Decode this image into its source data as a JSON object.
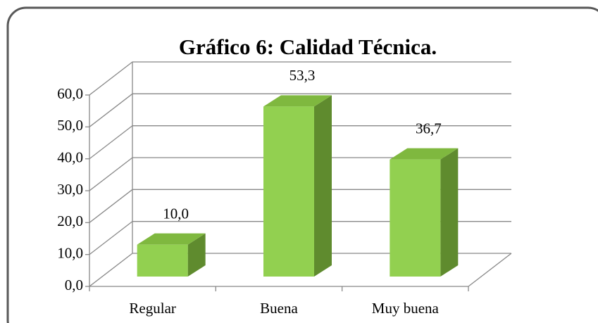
{
  "chart_data": {
    "type": "bar3d",
    "title": "Gráfico 6: Calidad Técnica.",
    "categories": [
      "Regular",
      "Buena",
      "Muy buena"
    ],
    "values": [
      10.0,
      53.3,
      36.7
    ],
    "value_labels": [
      "10,0",
      "53,3",
      "36,7"
    ],
    "color": "#92d050",
    "ylim": [
      0,
      60
    ],
    "yticks": [
      {
        "value": 0,
        "label": "0,0"
      },
      {
        "value": 10,
        "label": "10,0"
      },
      {
        "value": 20,
        "label": "20,0"
      },
      {
        "value": 30,
        "label": "30,0"
      },
      {
        "value": 40,
        "label": "40,0"
      },
      {
        "value": 50,
        "label": "50,0"
      },
      {
        "value": 60,
        "label": "60,0"
      }
    ],
    "grid": true
  }
}
